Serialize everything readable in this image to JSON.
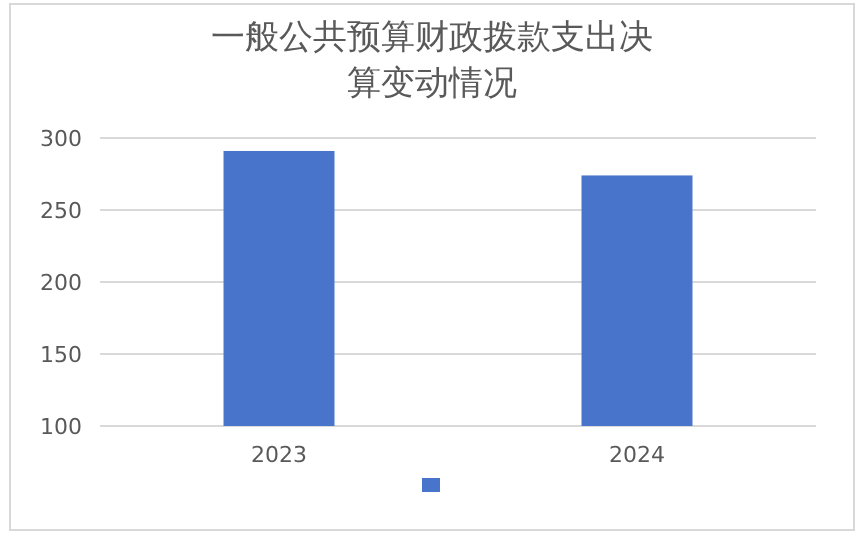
{
  "chart_data": {
    "type": "bar",
    "title": "一般公共预算财政拨款支出决算变动情况",
    "categories": [
      "2023",
      "2024"
    ],
    "series": [
      {
        "color": "#4874cb",
        "values": [
          291,
          274
        ]
      }
    ],
    "ylim": [
      100,
      300
    ],
    "yticks": [
      100,
      150,
      200,
      250,
      300
    ],
    "grid": "y"
  }
}
